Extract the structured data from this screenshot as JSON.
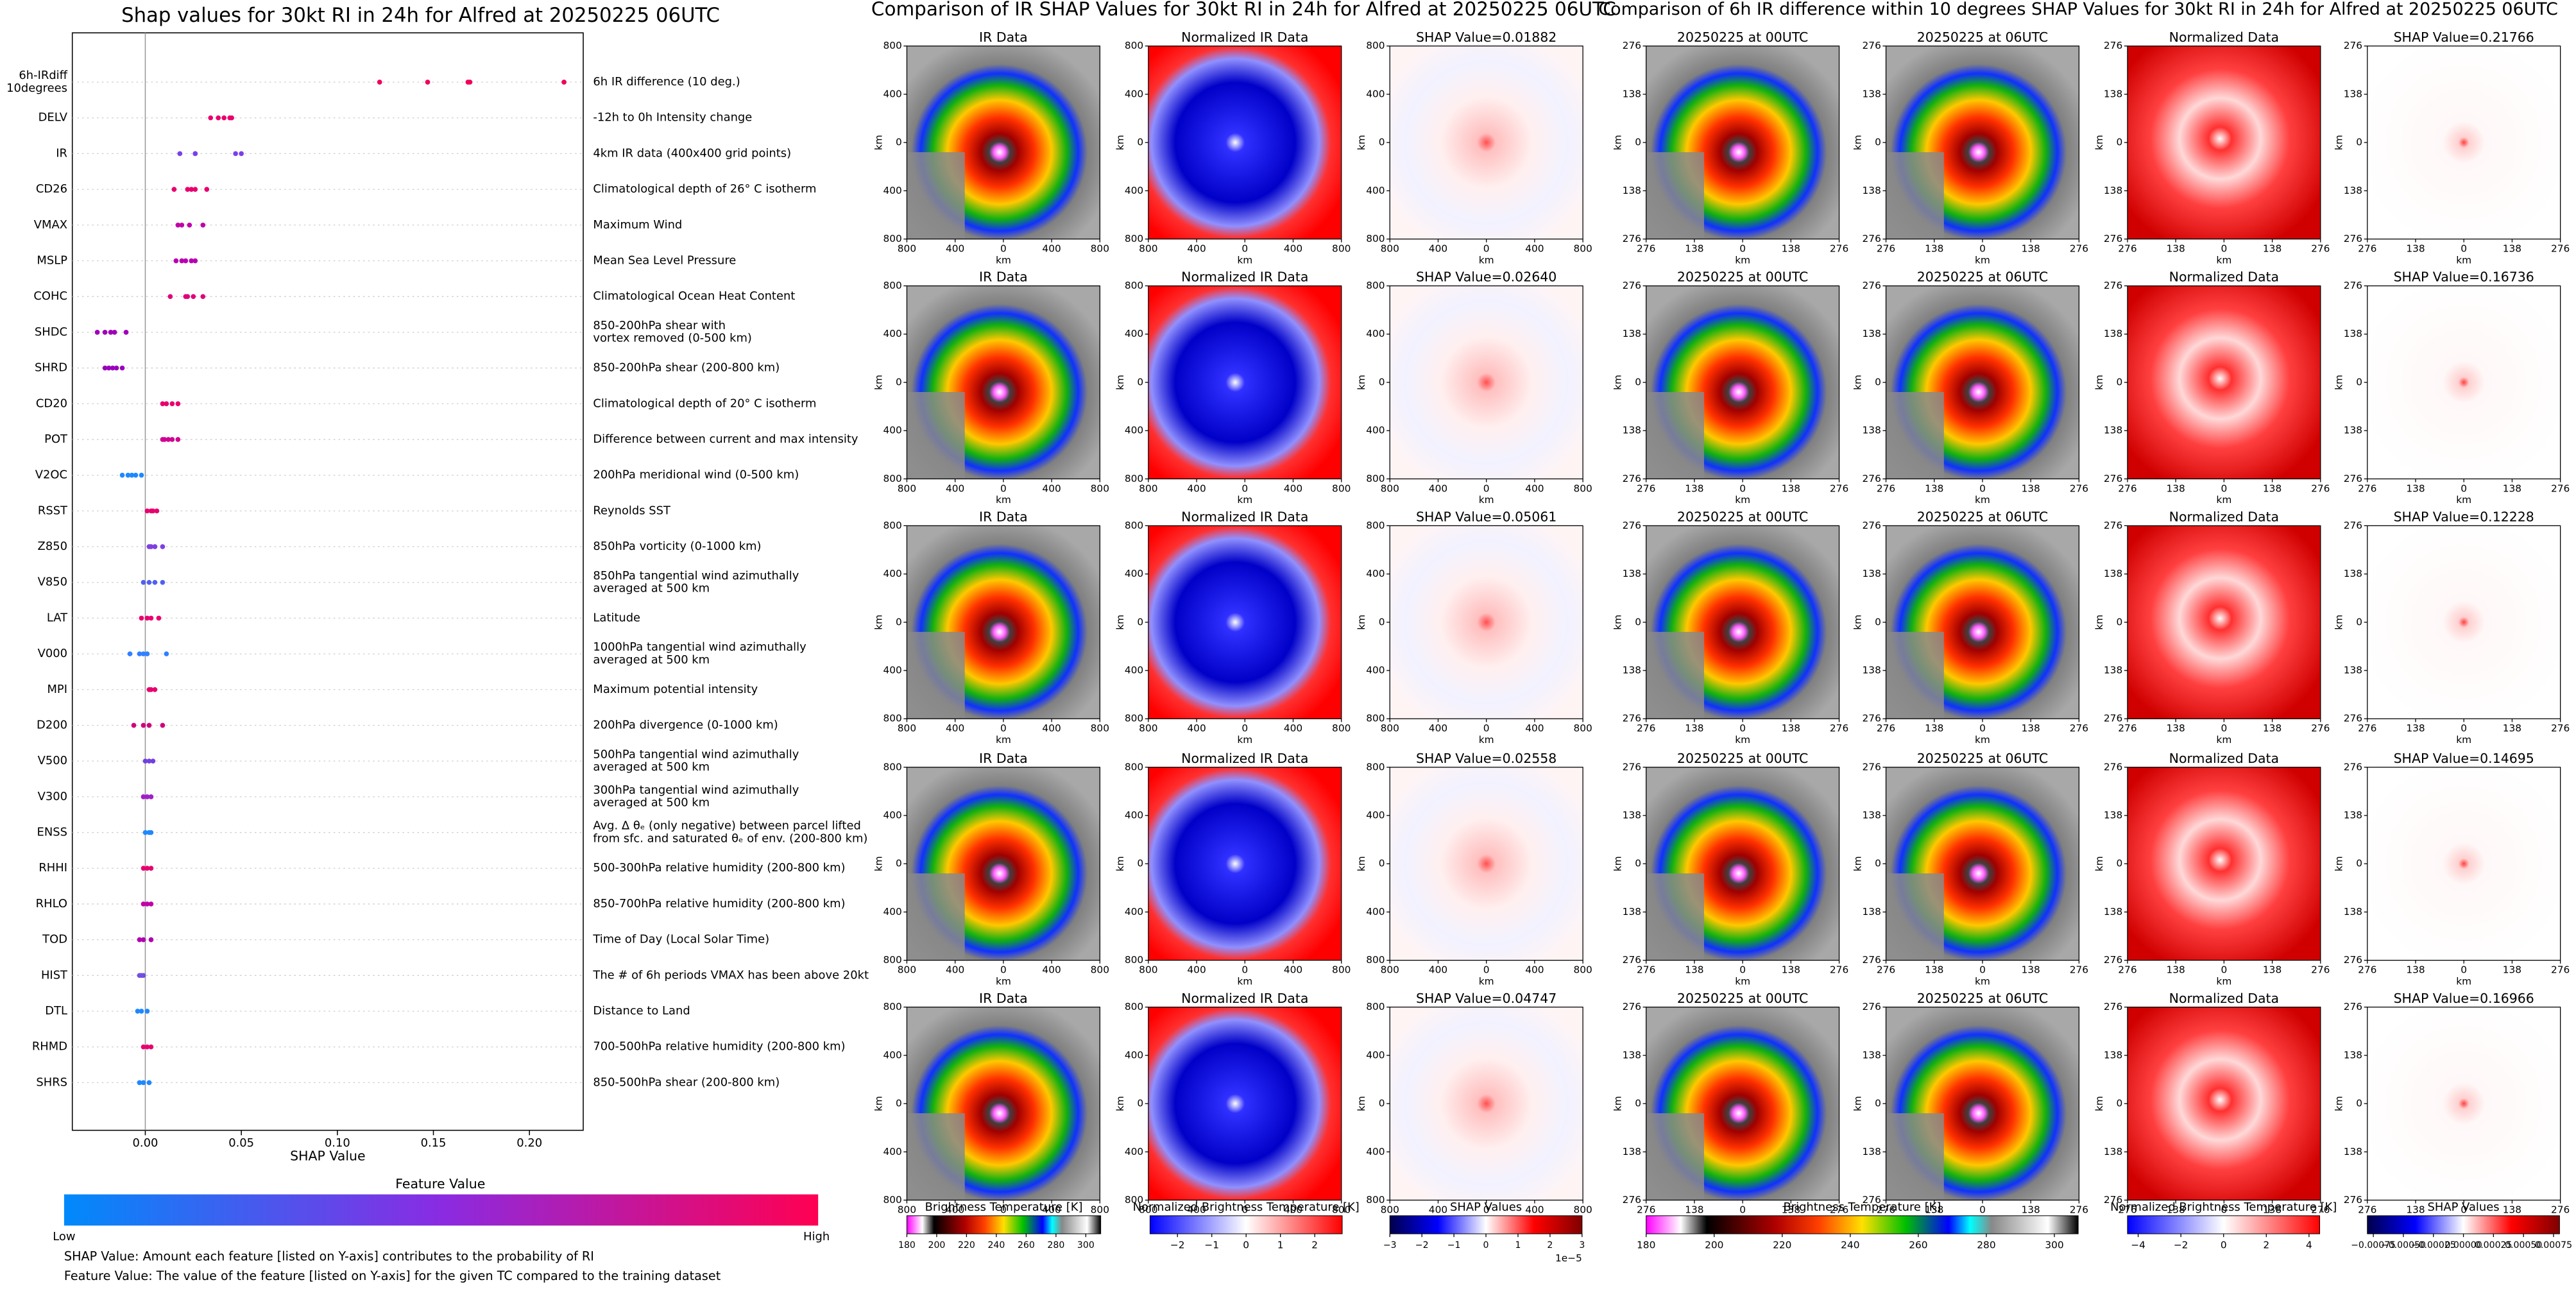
{
  "chart_data": [
    {
      "type": "beeswarm",
      "title": "Shap values for 30kt RI in 24h for Alfred at 20250225 06UTC",
      "xlabel": "SHAP Value",
      "xlim": [
        -0.038,
        0.228
      ],
      "xticks": [
        {
          "value": 0,
          "label": "0.00"
        },
        0.05,
        {
          "value": 0.1,
          "label": "0.10"
        },
        0.15,
        {
          "value": 0.2,
          "label": "0.20"
        }
      ],
      "series": [
        {
          "name": "6h-IRdiff\n10degrees",
          "description": "6h IR difference (10 deg.)",
          "color": "#f0005a",
          "values": [
            0.122,
            0.147,
            0.168,
            0.169,
            0.218
          ]
        },
        {
          "name": "DELV",
          "description": "-12h to 0h Intensity change",
          "color": "#e8006e",
          "values": [
            0.034,
            0.038,
            0.041,
            0.044,
            0.045
          ]
        },
        {
          "name": "IR",
          "description": "4km IR data (400x400 grid points)",
          "color": "#7a40e8",
          "values": [
            0.018,
            0.026,
            0.026,
            0.047,
            0.05
          ]
        },
        {
          "name": "CD26",
          "description": "Climatological depth of 26° C isotherm",
          "color": "#e8006e",
          "values": [
            0.015,
            0.022,
            0.024,
            0.026,
            0.032
          ]
        },
        {
          "name": "VMAX",
          "description": "Maximum Wind",
          "color": "#c000a8",
          "values": [
            0.017,
            0.019,
            0.023,
            0.03
          ]
        },
        {
          "name": "MSLP",
          "description": "Mean Sea Level Pressure",
          "color": "#b800b0",
          "values": [
            0.016,
            0.019,
            0.021,
            0.024,
            0.026
          ]
        },
        {
          "name": "COHC",
          "description": "Climatological Ocean Heat Content",
          "color": "#e00078",
          "values": [
            0.013,
            0.021,
            0.022,
            0.025,
            0.03
          ]
        },
        {
          "name": "SHDC",
          "description": "850-200hPa shear with\nvortex removed (0-500 km)",
          "color": "#a000b8",
          "values": [
            -0.025,
            -0.021,
            -0.018,
            -0.016,
            -0.01
          ]
        },
        {
          "name": "SHRD",
          "description": "850-200hPa shear (200-800 km)",
          "color": "#9800bc",
          "values": [
            -0.021,
            -0.019,
            -0.017,
            -0.015,
            -0.012
          ]
        },
        {
          "name": "CD20",
          "description": "Climatological depth of 20° C isotherm",
          "color": "#e8006e",
          "values": [
            0.009,
            0.011,
            0.014,
            0.017
          ]
        },
        {
          "name": "POT",
          "description": "Difference between current and max intensity",
          "color": "#d00090",
          "values": [
            0.009,
            0.01,
            0.012,
            0.014,
            0.017
          ]
        },
        {
          "name": "V2OC",
          "description": "200hPa meridional wind (0-500 km)",
          "color": "#1e88ff",
          "values": [
            -0.012,
            -0.009,
            -0.007,
            -0.005,
            -0.002
          ]
        },
        {
          "name": "RSST",
          "description": "Reynolds SST",
          "color": "#e80070",
          "values": [
            0.001,
            0.003,
            0.004,
            0.006
          ]
        },
        {
          "name": "Z850",
          "description": "850hPa vorticity (0-1000 km)",
          "color": "#8040e0",
          "values": [
            0.002,
            0.003,
            0.005,
            0.009
          ]
        },
        {
          "name": "V850",
          "description": "850hPa tangential wind azimuthally\naveraged at 500 km",
          "color": "#5060f0",
          "values": [
            -0.001,
            0.002,
            0.005,
            0.009
          ]
        },
        {
          "name": "LAT",
          "description": "Latitude",
          "color": "#e8006e",
          "values": [
            -0.002,
            0.001,
            0.003,
            0.007
          ]
        },
        {
          "name": "V000",
          "description": "1000hPa tangential wind azimuthally\naveraged at 500 km",
          "color": "#3080ff",
          "values": [
            -0.008,
            -0.003,
            -0.001,
            0.001,
            0.011
          ]
        },
        {
          "name": "MPI",
          "description": "Maximum potential intensity",
          "color": "#e80070",
          "values": [
            0.002,
            0.003,
            0.005
          ]
        },
        {
          "name": "D200",
          "description": "200hPa divergence (0-1000 km)",
          "color": "#d0007a",
          "values": [
            -0.006,
            -0.001,
            0.002,
            0.009
          ]
        },
        {
          "name": "V500",
          "description": "500hPa tangential wind azimuthally\naveraged at 500 km",
          "color": "#7040e0",
          "values": [
            0,
            0.002,
            0.004
          ]
        },
        {
          "name": "V300",
          "description": "300hPa tangential wind azimuthally\naveraged at 500 km",
          "color": "#a020c8",
          "values": [
            -0.001,
            0.001,
            0.003
          ]
        },
        {
          "name": "ENSS",
          "description": "Avg. Δ θₑ (only negative) between parcel lifted\nfrom sfc. and saturated θₑ of env. (200-800 km)",
          "color": "#1e88ff",
          "values": [
            0,
            0.002,
            0.003
          ]
        },
        {
          "name": "RHHI",
          "description": "500-300hPa relative humidity (200-800 km)",
          "color": "#e8006e",
          "values": [
            -0.001,
            0.001,
            0.003
          ]
        },
        {
          "name": "RHLO",
          "description": "850-700hPa relative humidity (200-800 km)",
          "color": "#c000a8",
          "values": [
            -0.001,
            0.001,
            0.003
          ]
        },
        {
          "name": "TOD",
          "description": "Time of Day (Local Solar Time)",
          "color": "#b000b0",
          "values": [
            -0.003,
            -0.001,
            0.003
          ]
        },
        {
          "name": "HIST",
          "description": "The # of 6h periods VMAX has been above 20kt",
          "color": "#7050e0",
          "values": [
            -0.003,
            -0.002,
            -0.001
          ]
        },
        {
          "name": "DTL",
          "description": "Distance to Land",
          "color": "#1e88ff",
          "values": [
            -0.004,
            -0.002,
            0.001
          ]
        },
        {
          "name": "RHMD",
          "description": "700-500hPa relative humidity (200-800 km)",
          "color": "#e8006e",
          "values": [
            -0.001,
            0.001,
            0.003
          ]
        },
        {
          "name": "SHRS",
          "description": "850-500hPa shear (200-800 km)",
          "color": "#1e88ff",
          "values": [
            -0.003,
            -0.001,
            0.002
          ]
        }
      ],
      "colorbar": {
        "label": "Feature Value",
        "low": "Low",
        "high": "High",
        "colors": [
          "#008afb",
          "#8a2be2",
          "#ff0052"
        ]
      },
      "notes": [
        "SHAP Value: Amount each feature [listed on Y-axis] contributes to the probability of RI",
        "Feature Value: The value of the feature [listed on Y-axis] for the given TC compared to the training dataset"
      ]
    },
    {
      "type": "image_grid",
      "title": "Comparison of IR SHAP Values for 30kt RI in 24h for Alfred at 20250225 06UTC",
      "panel_titles": [
        [
          "IR Data",
          "Normalized IR Data",
          "SHAP Value=0.01882"
        ],
        [
          "IR Data",
          "Normalized IR Data",
          "SHAP Value=0.02640"
        ],
        [
          "IR Data",
          "Normalized IR Data",
          "SHAP Value=0.05061"
        ],
        [
          "IR Data",
          "Normalized IR Data",
          "SHAP Value=0.02558"
        ],
        [
          "IR Data",
          "Normalized IR Data",
          "SHAP Value=0.04747"
        ]
      ],
      "axis_label": "km",
      "xlim": [
        -800,
        800
      ],
      "ticks": [
        {
          "value": -800,
          "label": "800"
        },
        {
          "value": -400,
          "label": "400"
        },
        0,
        400,
        800
      ],
      "colorbars": [
        {
          "label": "Brightness Temperature [K]",
          "colormap": "ir",
          "lim": [
            180,
            310
          ],
          "ticks": [
            180,
            200,
            220,
            240,
            260,
            280,
            300
          ]
        },
        {
          "label": "Normalized Brightness Temperature [K]",
          "colormap": "bwr",
          "lim": [
            -2.8,
            2.8
          ],
          "ticks": [
            {
              "value": -2,
              "label": "−2"
            },
            {
              "value": -1,
              "label": "−1"
            },
            0,
            1,
            2
          ]
        },
        {
          "label": "SHAP Values",
          "colormap": "seismic",
          "lim": [
            -3,
            3
          ],
          "offset": "1e−5",
          "ticks": [
            {
              "value": -3,
              "label": "−3"
            },
            {
              "value": -2,
              "label": "−2"
            },
            {
              "value": -1,
              "label": "−1"
            },
            0,
            1,
            2,
            3
          ]
        }
      ]
    },
    {
      "type": "image_grid",
      "title": "Comparison of 6h IR difference within 10 degrees SHAP Values for 30kt RI in 24h for Alfred at 20250225 06UTC",
      "panel_titles": [
        [
          "20250225 at 00UTC",
          "20250225 at 06UTC",
          "Normalized Data",
          "SHAP Value=0.21766"
        ],
        [
          "20250225 at 00UTC",
          "20250225 at 06UTC",
          "Normalized Data",
          "SHAP Value=0.16736"
        ],
        [
          "20250225 at 00UTC",
          "20250225 at 06UTC",
          "Normalized Data",
          "SHAP Value=0.12228"
        ],
        [
          "20250225 at 00UTC",
          "20250225 at 06UTC",
          "Normalized Data",
          "SHAP Value=0.14695"
        ],
        [
          "20250225 at 00UTC",
          "20250225 at 06UTC",
          "Normalized Data",
          "SHAP Value=0.16966"
        ]
      ],
      "axis_label": "km",
      "xlim": [
        -276,
        276
      ],
      "ticks": [
        {
          "value": -276,
          "label": "276"
        },
        {
          "value": -138,
          "label": "138"
        },
        0,
        138,
        276
      ],
      "colorbars": [
        {
          "label": "Brightness Temperature [K]",
          "colormap": "ir",
          "lim": [
            180,
            307
          ],
          "ticks": [
            180,
            200,
            220,
            240,
            260,
            280,
            300
          ]
        },
        {
          "label": "Normalized Brightness Temperature [K]",
          "colormap": "bwr",
          "lim": [
            -4.5,
            4.5
          ],
          "ticks": [
            {
              "value": -4,
              "label": "−4"
            },
            {
              "value": -2,
              "label": "−2"
            },
            0,
            2,
            4
          ]
        },
        {
          "label": "SHAP Values",
          "colormap": "seismic",
          "lim": [
            -0.0008,
            0.0008
          ],
          "ticks": [
            {
              "value": -0.00075,
              "label": "−0.00075"
            },
            {
              "value": -0.0005,
              "label": "−0.00050"
            },
            {
              "value": -0.00025,
              "label": "−0.00025"
            },
            {
              "value": 0,
              "label": "0.00000"
            },
            0.00025,
            {
              "value": 0.0005,
              "label": "0.00050"
            },
            0.00075
          ]
        }
      ]
    }
  ]
}
